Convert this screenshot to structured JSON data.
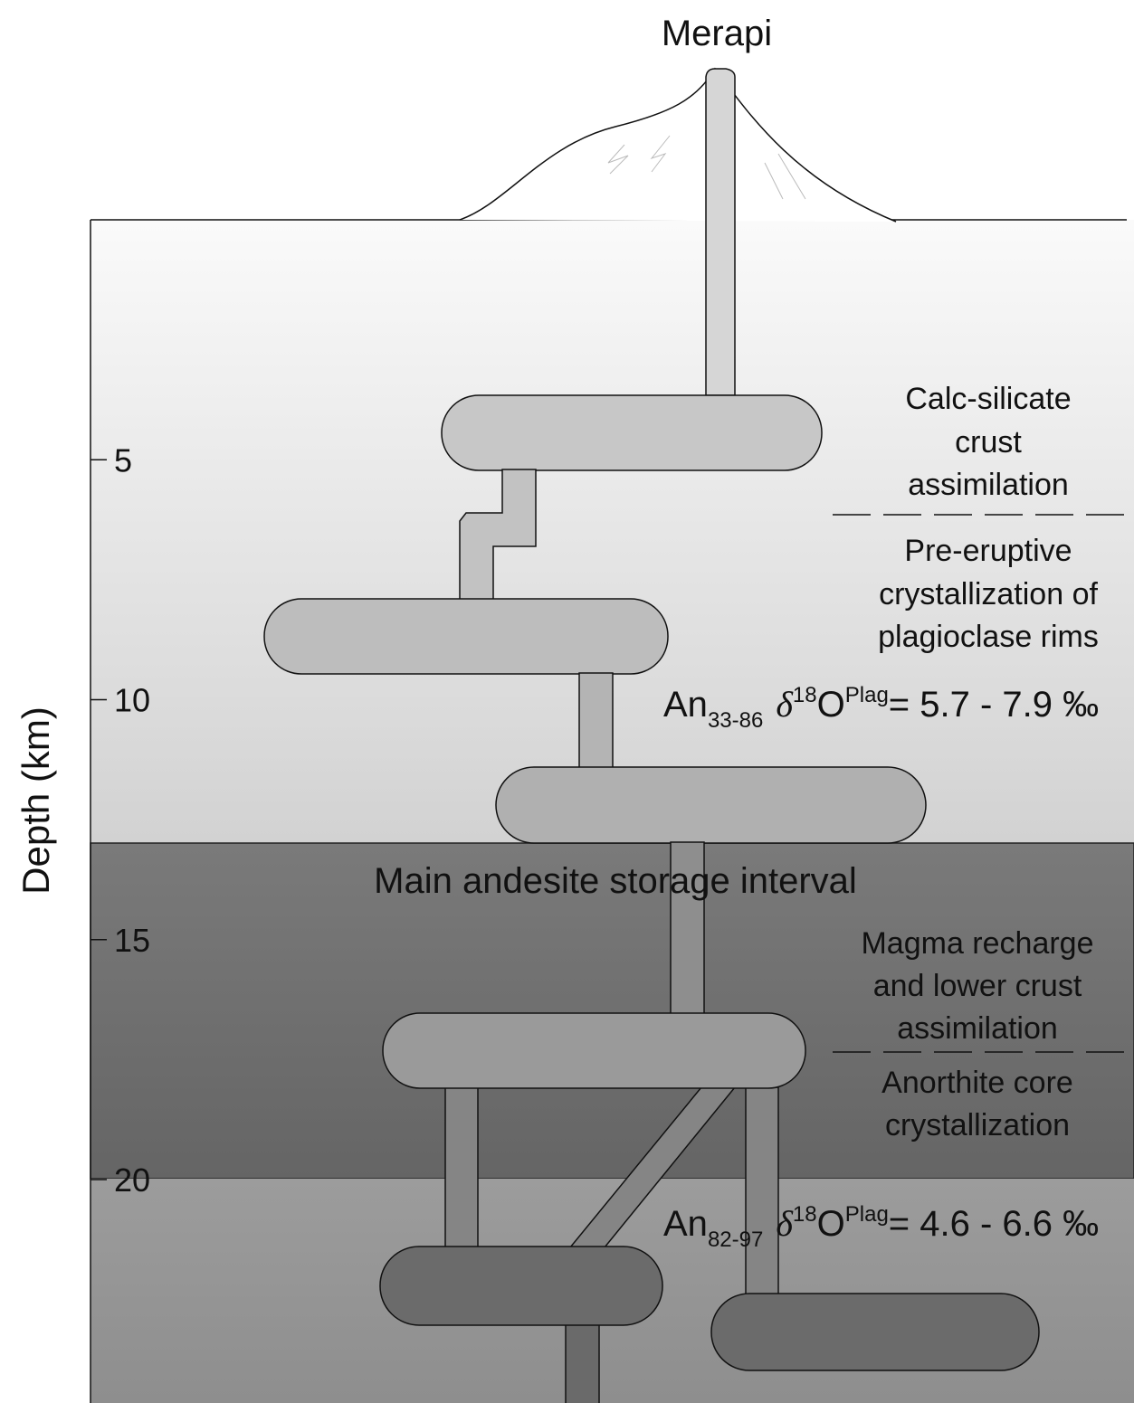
{
  "title": "Merapi",
  "depth_axis": {
    "label": "Depth (km)",
    "ticks": [
      5,
      10,
      15,
      20
    ]
  },
  "upper_process": {
    "lines": [
      "Calc-silicate",
      "crust",
      "assimilation"
    ]
  },
  "upper_crystallization": {
    "lines": [
      "Pre-eruptive",
      "crystallization of",
      "plagioclase rims"
    ]
  },
  "upper_composition": {
    "mineral": "An",
    "range": "33-86",
    "delta": "δ",
    "isotope": "18",
    "element": "O",
    "phase": "Plag",
    "value": "= 5.7 - 7.9 ‰"
  },
  "storage_label": "Main andesite storage interval",
  "lower_process": {
    "lines": [
      "Magma recharge",
      "and lower crust",
      "assimilation"
    ]
  },
  "lower_crystallization": {
    "lines": [
      "Anorthite core",
      "crystallization"
    ]
  },
  "lower_composition": {
    "mineral": "An",
    "range": "82-97",
    "delta": "δ",
    "isotope": "18",
    "element": "O",
    "phase": "Plag",
    "value": "= 4.6 - 6.6 ‰"
  }
}
